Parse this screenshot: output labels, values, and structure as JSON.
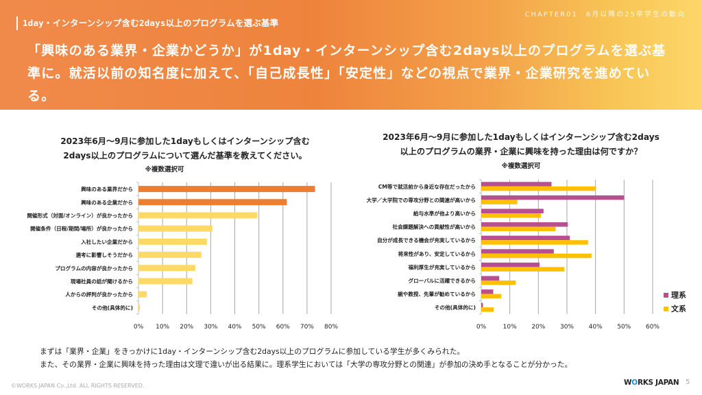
{
  "header": {
    "chapter": "CHAPTER01　6月以降の25卒学生の動向",
    "section_title": "1day・インターンシップ含む2days以上のプログラムを選ぶ基準",
    "headline": "「興味のある業界・企業かどうか」が1day・インターンシップ含む2days以上のプログラムを選ぶ基準に。就活以前の知名度に加えて、「自己成長性」「安定性」などの視点で業界・企業研究を進めている。"
  },
  "colors": {
    "orange": "#ed7d31",
    "light_yellow": "#ffd966",
    "rikei": "#b84f8f",
    "bunkei": "#ffc000",
    "gridline": "#a6a6a6"
  },
  "chart_data": [
    {
      "type": "bar",
      "orientation": "horizontal",
      "title": "2023年6月～9月に参加した1dayもしくはインターンシップ含む 2days以上のプログラムについて選んだ基準を教えてください。",
      "title_lines": [
        "2023年6月～9月に参加した1dayもしくはインターンシップ含む",
        "2days以上のプログラムについて選んだ基準を教えてください。"
      ],
      "note": "※複数選択可",
      "categories": [
        "興味のある業界だから",
        "興味のある企業だから",
        "開催形式（対面/オンライン）が良かったから",
        "開催条件（日程/期間/場所）が良かったから",
        "入社したい企業だから",
        "選考に影響しそうだから",
        "プログラムの内容が良かったから",
        "現場社員の話が聞けるから",
        "人からの評判が良かったから",
        "その他(具体的に)"
      ],
      "values": [
        73.3,
        61.6,
        49.4,
        30.7,
        28.4,
        26.1,
        23.6,
        22.4,
        3.4,
        0.6
      ],
      "highlight_count": 2,
      "xlabel": "",
      "ylabel": "",
      "xlim": [
        0,
        80
      ],
      "xticks": [
        "0%",
        "10%",
        "20%",
        "30%",
        "40%",
        "50%",
        "60%",
        "70%",
        "80%"
      ],
      "grid": true,
      "legend": "none"
    },
    {
      "type": "bar",
      "orientation": "horizontal",
      "title": "2023年6月～9月に参加した1dayもしくはインターンシップ含む2days 以上のプログラムの業界・企業に興味を持った理由は何ですか？",
      "title_lines": [
        "2023年6月～9月に参加した1dayもしくはインターンシップ含む2days",
        "以上のプログラムの業界・企業に興味を持った理由は何ですか？"
      ],
      "note": "※複数選択可",
      "categories": [
        "CM等で就活前から身近な存在だったから",
        "大学／大学院での専攻分野との関連が高いから",
        "給与水準が他より高いから",
        "社会課題解決への貢献性が高いから",
        "自分が成長できる機会が充実しているから",
        "将来性があり、安定しているから",
        "福利厚生が充実しているから",
        "グローバルに活躍できるから",
        "親や教授、先輩が勧めているから",
        "その他(具体的に)"
      ],
      "series": [
        {
          "name": "理系",
          "values": [
            24.6,
            50.0,
            21.8,
            30.3,
            31.0,
            25.4,
            20.4,
            6.3,
            4.2,
            0.6
          ]
        },
        {
          "name": "文系",
          "values": [
            40.0,
            12.6,
            20.9,
            26.0,
            37.4,
            38.6,
            29.1,
            12.1,
            7.0,
            4.4
          ]
        }
      ],
      "xlabel": "",
      "ylabel": "",
      "xlim": [
        0,
        60
      ],
      "xticks": [
        "0%",
        "10%",
        "20%",
        "30%",
        "40%",
        "50%",
        "60%"
      ],
      "grid": true,
      "legend": "right"
    }
  ],
  "summary": {
    "line1": "まずは「業界・企業」をきっかけに1day・インターンシップ含む2days以上のプログラムに参加している学生が多くみられた。",
    "line2": "また、その業界・企業に興味を持った理由は文理で違いが出る結果に。理系学生においては「大学の専攻分野との関連」が参加の決め手となることが分かった。"
  },
  "footer": {
    "copyright": "©WORKS JAPAN Co.,Ltd. ALL RIGHTS RESERVED.",
    "logo_w": "W",
    "logo_o": "O",
    "logo_rest": "RKS JAPAN",
    "page": "5"
  }
}
